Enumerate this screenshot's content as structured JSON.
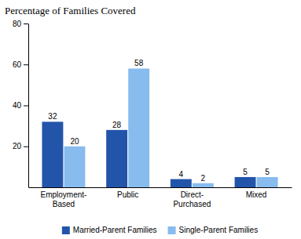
{
  "chart_data": {
    "type": "bar",
    "title": "Percentage of Families Covered",
    "categories": [
      "Employment-\nBased",
      "Public",
      "Direct-\nPurchased",
      "Mixed"
    ],
    "series": [
      {
        "name": "Married-Parent Families",
        "color": "#2255aa",
        "values": [
          32,
          28,
          4,
          5
        ]
      },
      {
        "name": "Single-Parent Families",
        "color": "#88bbee",
        "values": [
          20,
          58,
          2,
          5
        ]
      }
    ],
    "ylim": [
      0,
      80
    ],
    "yticks": [
      20,
      40,
      60,
      80
    ],
    "grid": false,
    "legend": "bottom",
    "data_labels": true
  }
}
